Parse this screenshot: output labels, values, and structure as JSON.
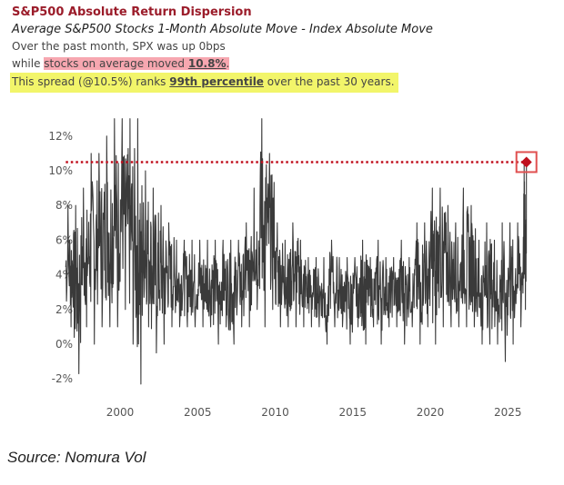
{
  "header": {
    "title": "S&P500 Absolute Return Dispersion",
    "subtitle": "Average S&P500 Stocks 1-Month Absolute Move - Index Absolute Move",
    "line1": "Over the past month, SPX was up 0bps",
    "line2_prefix": "while ",
    "line2_highlight": "stocks on average moved ",
    "line2_value": "10.8%",
    "line2_suffix": ".",
    "line3_prefix": "This spread (@10.5%) ranks ",
    "line3_bold": "99th percentile",
    "line3_suffix": " over the past 30 years."
  },
  "source": "Source: Nomura Vol",
  "colors": {
    "title": "#9b1c2a",
    "series": "#3a3a3a",
    "marker": "#c0101e",
    "highlight_pink": "#f7a7b0",
    "highlight_yellow": "#f2f56a"
  },
  "chart_data": {
    "type": "line",
    "title": "",
    "xlabel": "",
    "ylabel": "",
    "xlim": [
      1996.5,
      2026.3
    ],
    "ylim": [
      -2.5,
      13
    ],
    "yticks": [
      -2,
      0,
      2,
      4,
      6,
      8,
      10,
      12
    ],
    "ytick_labels": [
      "-2%",
      "0%",
      "2%",
      "4%",
      "6%",
      "8%",
      "10%",
      "12%"
    ],
    "xticks": [
      2000,
      2005,
      2010,
      2015,
      2020,
      2025
    ],
    "xtick_labels": [
      "2000",
      "2005",
      "2010",
      "2015",
      "2020",
      "2025"
    ],
    "reference_line": {
      "value": 10.5,
      "style": "dotted"
    },
    "latest_point": {
      "x": 2026.2,
      "y": 10.5
    },
    "series_envelope_note": "half-year low/high range of dispersion (%)",
    "envelope": [
      [
        1996.5,
        1,
        8
      ],
      [
        1997,
        -1.7,
        8
      ],
      [
        1997.5,
        1,
        9
      ],
      [
        1998,
        0,
        11
      ],
      [
        1998.5,
        1,
        11
      ],
      [
        1999,
        1,
        12
      ],
      [
        1999.5,
        1,
        13
      ],
      [
        2000,
        2,
        13
      ],
      [
        2000.5,
        0,
        13
      ],
      [
        2001,
        -2.3,
        13
      ],
      [
        2001.5,
        1,
        10
      ],
      [
        2002,
        -0.5,
        9
      ],
      [
        2002.5,
        0,
        8
      ],
      [
        2003,
        1,
        7
      ],
      [
        2003.5,
        1,
        6
      ],
      [
        2004,
        1,
        6
      ],
      [
        2004.5,
        1,
        6
      ],
      [
        2005,
        1,
        6
      ],
      [
        2005.5,
        1,
        6
      ],
      [
        2006,
        0,
        6
      ],
      [
        2006.5,
        1,
        6
      ],
      [
        2007,
        0,
        6
      ],
      [
        2007.5,
        1,
        6
      ],
      [
        2008,
        1,
        7
      ],
      [
        2008.5,
        2,
        9
      ],
      [
        2009,
        1,
        13
      ],
      [
        2009.5,
        2,
        11
      ],
      [
        2010,
        1,
        7
      ],
      [
        2010.5,
        1,
        6
      ],
      [
        2011,
        1,
        7
      ],
      [
        2011.5,
        1,
        6
      ],
      [
        2012,
        1,
        5
      ],
      [
        2012.5,
        1,
        5
      ],
      [
        2013,
        0,
        5
      ],
      [
        2013.5,
        1,
        6
      ],
      [
        2014,
        1,
        5
      ],
      [
        2014.5,
        0,
        5
      ],
      [
        2015,
        1,
        5
      ],
      [
        2015.5,
        0,
        6
      ],
      [
        2016,
        1,
        5
      ],
      [
        2016.5,
        0,
        6
      ],
      [
        2017,
        1,
        5
      ],
      [
        2017.5,
        1,
        5
      ],
      [
        2018,
        0,
        6
      ],
      [
        2018.5,
        1,
        5
      ],
      [
        2019,
        0,
        7
      ],
      [
        2019.5,
        1,
        7
      ],
      [
        2020,
        0,
        9
      ],
      [
        2020.5,
        1,
        9
      ],
      [
        2021,
        1,
        8
      ],
      [
        2021.5,
        1,
        7
      ],
      [
        2022,
        1,
        9
      ],
      [
        2022.5,
        1,
        8
      ],
      [
        2023,
        0,
        6
      ],
      [
        2023.5,
        0,
        7
      ],
      [
        2024,
        0,
        6
      ],
      [
        2024.5,
        -1,
        7
      ],
      [
        2025,
        0,
        7
      ],
      [
        2025.5,
        1,
        7
      ],
      [
        2026,
        2,
        10.5
      ]
    ]
  }
}
